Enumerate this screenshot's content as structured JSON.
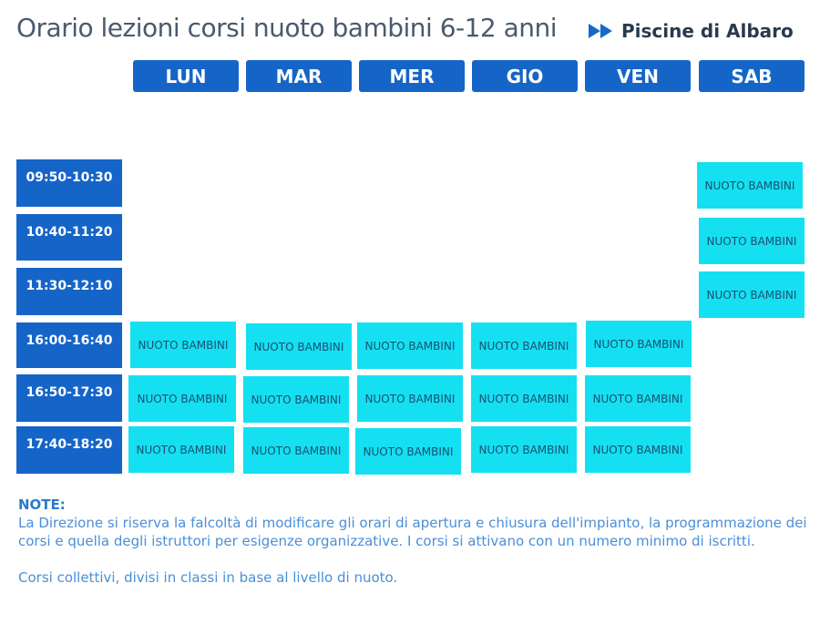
{
  "header": {
    "title": "Orario lezioni corsi nuoto bambini 6-12 anni",
    "brand": "Piscine di Albaro",
    "brand_icon": "double-play-arrow-icon"
  },
  "days": [
    "LUN",
    "MAR",
    "MER",
    "GIO",
    "VEN",
    "SAB"
  ],
  "times": [
    "09:50-10:30",
    "10:40-11:20",
    "11:30-12:10",
    "16:00-16:40",
    "16:50-17:30",
    "17:40-18:20"
  ],
  "course_label": "NUOTO BAMBINI",
  "notes": {
    "title": "NOTE:",
    "text": "La Direzione si riserva la falcoltà di modificare gli orari di apertura e chiusura dell'impianto, la programmazione dei corsi e quella degli istruttori per esigenze organizzative. I corsi si attivano con un numero minimo di iscritti.",
    "text2": "Corsi collettivi, divisi in classi in base al livello di nuoto."
  },
  "colors": {
    "header_blue": "#1565c8",
    "course_cyan": "#14e0f2",
    "note_blue": "#3a8ad6"
  }
}
